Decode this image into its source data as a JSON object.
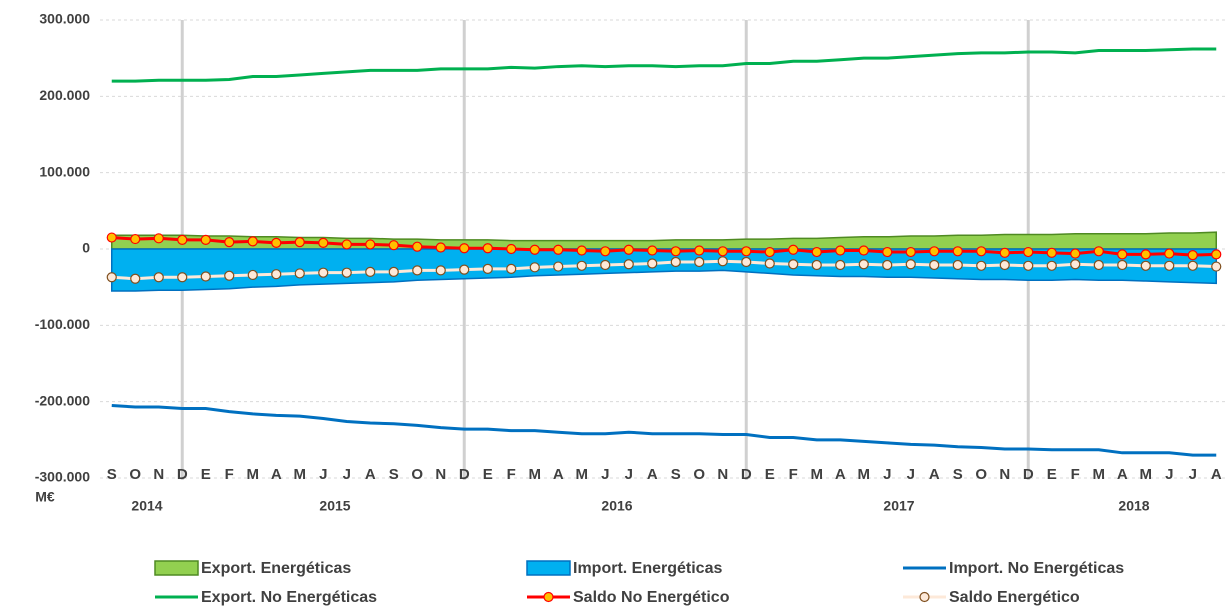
{
  "chart_data": {
    "type": "line",
    "y_label": "M€",
    "categories": [
      "S",
      "O",
      "N",
      "D",
      "E",
      "F",
      "M",
      "A",
      "M",
      "J",
      "J",
      "A",
      "S",
      "O",
      "N",
      "D",
      "E",
      "F",
      "M",
      "A",
      "M",
      "J",
      "J",
      "A",
      "S",
      "O",
      "N",
      "D",
      "E",
      "F",
      "M",
      "A",
      "M",
      "J",
      "J",
      "A",
      "S",
      "O",
      "N",
      "D",
      "E",
      "F",
      "M",
      "A",
      "M",
      "J",
      "J",
      "A"
    ],
    "year_labels": [
      "2014",
      "2015",
      "2016",
      "2017",
      "2018"
    ],
    "ylim": [
      -300000,
      300000
    ],
    "yticks": [
      {
        "value": -300000,
        "label": "-300.000"
      },
      {
        "value": -200000,
        "label": "-200.000"
      },
      {
        "value": -100000,
        "label": "-100.000"
      },
      0,
      {
        "value": 100000,
        "label": "100.000"
      },
      {
        "value": 200000,
        "label": "200.000"
      },
      {
        "value": 300000,
        "label": "300.000"
      }
    ],
    "grid": true,
    "series": [
      {
        "name": "Export. Energéticas",
        "kind": "area",
        "color": "#92d050",
        "edge": "#4f8a22",
        "values": [
          18000,
          18000,
          18000,
          18000,
          17000,
          17000,
          16000,
          16000,
          15000,
          15000,
          14000,
          14000,
          13000,
          13000,
          12000,
          12000,
          12000,
          11000,
          11000,
          11000,
          11000,
          11000,
          11000,
          11000,
          12000,
          12000,
          12000,
          13000,
          13000,
          14000,
          14000,
          15000,
          16000,
          16000,
          17000,
          17000,
          18000,
          18000,
          19000,
          19000,
          19000,
          20000,
          20000,
          20000,
          20000,
          21000,
          21000,
          22000
        ]
      },
      {
        "name": "Import. Energéticas",
        "kind": "area",
        "color": "#00b0f0",
        "edge": "#0070c0",
        "values": [
          -55000,
          -55000,
          -54000,
          -54000,
          -53000,
          -52000,
          -50000,
          -49000,
          -47000,
          -46000,
          -45000,
          -44000,
          -43000,
          -41000,
          -40000,
          -39000,
          -38000,
          -37000,
          -35000,
          -34000,
          -33000,
          -32000,
          -31000,
          -30000,
          -29000,
          -29000,
          -28000,
          -30000,
          -32000,
          -34000,
          -35000,
          -36000,
          -36000,
          -37000,
          -37000,
          -38000,
          -39000,
          -40000,
          -40000,
          -41000,
          -41000,
          -40000,
          -41000,
          -41000,
          -42000,
          -43000,
          -44000,
          -45000
        ]
      },
      {
        "name": "Import. No Energéticas",
        "kind": "line",
        "color": "#0070c0",
        "values": [
          -205000,
          -207000,
          -207000,
          -209000,
          -209000,
          -213000,
          -216000,
          -218000,
          -219000,
          -222000,
          -226000,
          -228000,
          -229000,
          -231000,
          -234000,
          -236000,
          -236000,
          -238000,
          -238000,
          -240000,
          -242000,
          -242000,
          -240000,
          -242000,
          -242000,
          -242000,
          -243000,
          -243000,
          -247000,
          -247000,
          -250000,
          -250000,
          -252000,
          -254000,
          -256000,
          -257000,
          -259000,
          -260000,
          -262000,
          -262000,
          -263000,
          -263000,
          -263000,
          -267000,
          -267000,
          -267000,
          -270000,
          -270000
        ]
      },
      {
        "name": "Export. No Energéticas",
        "kind": "line",
        "color": "#00b050",
        "values": [
          220000,
          220000,
          221000,
          221000,
          221000,
          222000,
          226000,
          226000,
          228000,
          230000,
          232000,
          234000,
          234000,
          234000,
          236000,
          236000,
          236000,
          238000,
          237000,
          239000,
          240000,
          239000,
          240000,
          240000,
          239000,
          240000,
          240000,
          243000,
          243000,
          246000,
          246000,
          248000,
          250000,
          250000,
          252000,
          254000,
          256000,
          257000,
          257000,
          258000,
          258000,
          257000,
          260000,
          260000,
          260000,
          261000,
          262000,
          262000
        ]
      },
      {
        "name": "Saldo No Energético",
        "kind": "line",
        "color": "#ff0000",
        "marker_fill": "#ffc000",
        "marker_edge": "#ff0000",
        "values": [
          15000,
          13000,
          14000,
          12000,
          12000,
          9000,
          10000,
          8000,
          9000,
          8000,
          6000,
          6000,
          5000,
          3000,
          2000,
          1000,
          1000,
          0,
          -1000,
          -1000,
          -2000,
          -3000,
          -1000,
          -2000,
          -3000,
          -2000,
          -3000,
          -3000,
          -4000,
          -1000,
          -4000,
          -2000,
          -2000,
          -4000,
          -4000,
          -3000,
          -3000,
          -3000,
          -5000,
          -4000,
          -5000,
          -6000,
          -3000,
          -7000,
          -7000,
          -6000,
          -8000,
          -7000
        ]
      },
      {
        "name": "Saldo Energético",
        "kind": "line",
        "color": "#fde9d9",
        "marker_fill": "#fde9d9",
        "marker_edge": "#7f4f1f",
        "values": [
          -37000,
          -39000,
          -37000,
          -37000,
          -36000,
          -35000,
          -34000,
          -33000,
          -32000,
          -31000,
          -31000,
          -30000,
          -30000,
          -28000,
          -28000,
          -27000,
          -26000,
          -26000,
          -24000,
          -23000,
          -22000,
          -21000,
          -20000,
          -19000,
          -17000,
          -17000,
          -16000,
          -17000,
          -19000,
          -20000,
          -21000,
          -21000,
          -20000,
          -21000,
          -20000,
          -21000,
          -21000,
          -22000,
          -21000,
          -22000,
          -22000,
          -20000,
          -21000,
          -21000,
          -22000,
          -22000,
          -22000,
          -23000
        ]
      }
    ]
  }
}
